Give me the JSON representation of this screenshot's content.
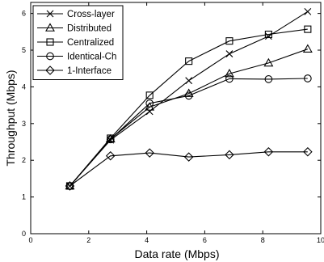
{
  "chart_data": {
    "type": "line",
    "xlabel": "Data rate (Mbps)",
    "ylabel": "Throughput (Mbps)",
    "xlim": [
      0,
      10
    ],
    "ylim": [
      0,
      6.3
    ],
    "xticks": [
      "0",
      "2",
      "4",
      "6",
      "8",
      "10"
    ],
    "yticks": [
      "0",
      "1",
      "2",
      "3",
      "4",
      "5",
      "6"
    ],
    "grid": false,
    "legend_position": "top-left",
    "x": [
      1.35,
      2.75,
      4.1,
      5.45,
      6.85,
      8.2,
      9.55
    ],
    "series": [
      {
        "name": "Cross-layer",
        "marker": "x",
        "values": [
          1.3,
          2.55,
          3.33,
          4.17,
          4.9,
          5.38,
          6.05
        ]
      },
      {
        "name": "Distributed",
        "marker": "triangle",
        "values": [
          1.3,
          2.58,
          3.45,
          3.82,
          4.36,
          4.65,
          5.03
        ]
      },
      {
        "name": "Centralized",
        "marker": "square",
        "values": [
          1.3,
          2.6,
          3.77,
          4.7,
          5.25,
          5.43,
          5.57
        ]
      },
      {
        "name": "Identical-Ch",
        "marker": "circle",
        "values": [
          1.3,
          2.57,
          3.55,
          3.76,
          4.22,
          4.21,
          4.23
        ]
      },
      {
        "name": "1-Interface",
        "marker": "diamond",
        "values": [
          1.3,
          2.12,
          2.2,
          2.09,
          2.15,
          2.23,
          2.23
        ]
      }
    ]
  }
}
